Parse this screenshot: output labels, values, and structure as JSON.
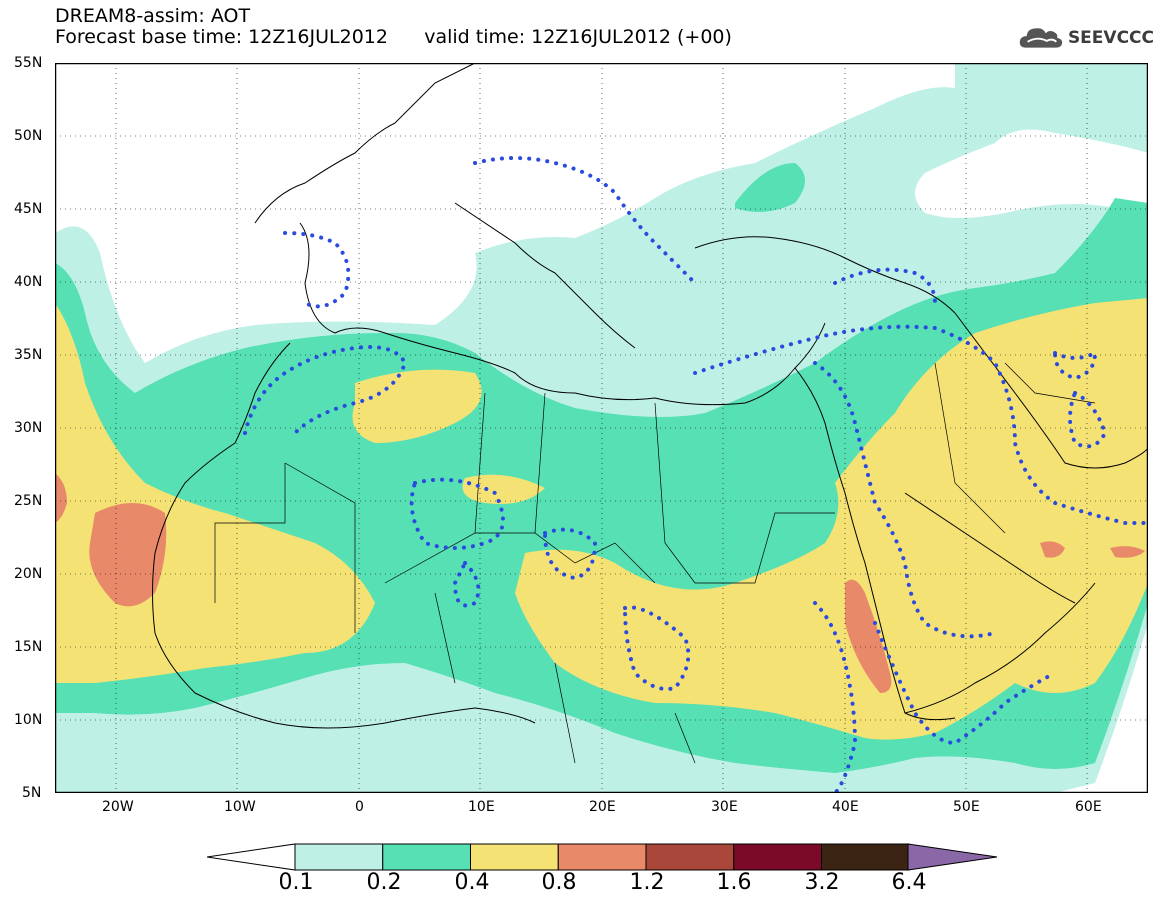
{
  "header": {
    "title": "DREAM8-assim: AOT",
    "base_time": "Forecast base time: 12Z16JUL2012",
    "valid_time": "valid time: 12Z16JUL2012 (+00)"
  },
  "logo": {
    "text": "SEEVCCC",
    "icon": "cloud-icon"
  },
  "map": {
    "lon_range": [
      -25,
      65
    ],
    "lat_range": [
      5,
      55
    ],
    "lat_ticks": [
      "55N",
      "50N",
      "45N",
      "40N",
      "35N",
      "30N",
      "25N",
      "20N",
      "15N",
      "10N",
      "5N"
    ],
    "lon_ticks": [
      "20W",
      "10W",
      "0",
      "10E",
      "20E",
      "30E",
      "40E",
      "50E",
      "60E"
    ],
    "graticule": true
  },
  "legend": {
    "levels": [
      "0.1",
      "0.2",
      "0.4",
      "0.8",
      "1.2",
      "1.6",
      "3.2",
      "6.4"
    ],
    "colors": [
      "#bff0e6",
      "#56e0b4",
      "#f5e275",
      "#e8896a",
      "#a8473a",
      "#7a0a27",
      "#3b2414"
    ],
    "under_color": "#ffffff",
    "over_color": "#8a68a8"
  }
}
